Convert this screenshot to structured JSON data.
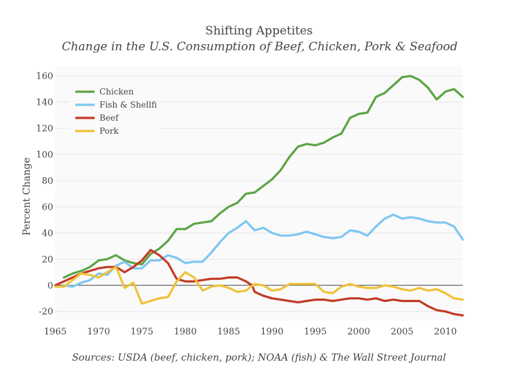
{
  "chart_data": {
    "type": "line",
    "title": "Shifting Appetites",
    "subtitle": "Change in the U.S. Consumption of Beef, Chicken, Pork & Seafood",
    "xlabel": "",
    "ylabel": "Percent Change",
    "source": "Sources: USDA (beef, chicken, pork); NOAA (fish) & The Wall Street Journal",
    "xlim": [
      1965,
      2012
    ],
    "ylim": [
      -27,
      168
    ],
    "x_ticks": [
      1965,
      1970,
      1975,
      1980,
      1985,
      1990,
      1995,
      2000,
      2005,
      2010
    ],
    "y_ticks": [
      -20,
      0,
      20,
      40,
      60,
      80,
      100,
      120,
      140,
      160
    ],
    "grid": true,
    "legend_position": "top-left",
    "series": [
      {
        "name": "Chicken",
        "color": "#5ca444",
        "x": [
          1966,
          1967,
          1968,
          1969,
          1970,
          1971,
          1972,
          1973,
          1974,
          1975,
          1976,
          1977,
          1978,
          1979,
          1980,
          1981,
          1982,
          1983,
          1984,
          1985,
          1986,
          1987,
          1988,
          1989,
          1990,
          1991,
          1992,
          1993,
          1994,
          1995,
          1996,
          1997,
          1998,
          1999,
          2000,
          2001,
          2002,
          2003,
          2004,
          2005,
          2006,
          2007,
          2008,
          2009,
          2010,
          2011,
          2012
        ],
        "y": [
          6,
          9,
          11,
          14,
          19,
          20,
          23,
          19,
          17,
          16,
          24,
          28,
          34,
          43,
          43,
          47,
          48,
          49,
          55,
          60,
          63,
          70,
          71,
          76,
          81,
          88,
          98,
          106,
          108,
          107,
          109,
          113,
          116,
          128,
          131,
          132,
          144,
          147,
          153,
          159,
          160,
          157,
          151,
          142,
          148,
          150,
          144
        ]
      },
      {
        "name": "Fish & Shellfi",
        "color": "#7dc6f2",
        "x": [
          1966,
          1967,
          1968,
          1969,
          1970,
          1971,
          1972,
          1973,
          1974,
          1975,
          1976,
          1977,
          1978,
          1979,
          1980,
          1981,
          1982,
          1983,
          1984,
          1985,
          1986,
          1987,
          1988,
          1989,
          1990,
          1991,
          1992,
          1993,
          1994,
          1995,
          1996,
          1997,
          1998,
          1999,
          2000,
          2001,
          2002,
          2003,
          2004,
          2005,
          2006,
          2007,
          2008,
          2009,
          2010,
          2011,
          2012
        ],
        "y": [
          0,
          -1,
          2,
          4,
          9,
          8,
          15,
          18,
          13,
          13,
          19,
          19,
          23,
          21,
          17,
          18,
          18,
          25,
          33,
          40,
          44,
          49,
          42,
          44,
          40,
          38,
          38,
          39,
          41,
          39,
          37,
          36,
          37,
          42,
          41,
          38,
          45,
          51,
          54,
          51,
          52,
          51,
          49,
          48,
          48,
          45,
          35
        ]
      },
      {
        "name": "Beef",
        "color": "#c33a25",
        "x": [
          1965,
          1966,
          1967,
          1968,
          1969,
          1970,
          1971,
          1972,
          1973,
          1974,
          1975,
          1976,
          1977,
          1978,
          1979,
          1980,
          1981,
          1982,
          1983,
          1984,
          1985,
          1986,
          1987,
          1987.7,
          1988,
          1989,
          1990,
          1991,
          1992,
          1993,
          1994,
          1995,
          1996,
          1997,
          1998,
          1999,
          2000,
          2001,
          2002,
          2003,
          2004,
          2005,
          2006,
          2007,
          2008,
          2009,
          2010,
          2011,
          2012
        ],
        "y": [
          0,
          3,
          6,
          9,
          11,
          13,
          14,
          14,
          10,
          14,
          19,
          27,
          23,
          17,
          5,
          3,
          3,
          4,
          5,
          5,
          6,
          6,
          3,
          0,
          -5,
          -8,
          -10,
          -11,
          -12,
          -13,
          -12,
          -11,
          -11,
          -12,
          -11,
          -10,
          -10,
          -11,
          -10,
          -12,
          -11,
          -12,
          -12,
          -12,
          -16,
          -19,
          -20,
          -22,
          -23
        ]
      },
      {
        "name": "Pork",
        "color": "#f0c238",
        "x": [
          1965,
          1966,
          1967,
          1968,
          1969,
          1970,
          1971,
          1972,
          1973,
          1974,
          1975,
          1976,
          1977,
          1978,
          1979,
          1980,
          1981,
          1982,
          1983,
          1984,
          1985,
          1986,
          1987,
          1988,
          1989,
          1990,
          1991,
          1992,
          1993,
          1994,
          1995,
          1996,
          1997,
          1998,
          1999,
          2000,
          2001,
          2002,
          2003,
          2004,
          2005,
          2006,
          2007,
          2008,
          2009,
          2010,
          2011,
          2012
        ],
        "y": [
          -1,
          -1,
          4,
          9,
          8,
          6,
          10,
          14,
          -2,
          2,
          -14,
          -12,
          -10,
          -9,
          3,
          10,
          6,
          -4,
          -1,
          0,
          -2,
          -5,
          -4,
          1,
          0,
          -4,
          -3,
          1,
          1,
          1,
          1,
          -5,
          -6,
          -1,
          1,
          -1,
          -2,
          -2,
          0,
          -1,
          -3,
          -4,
          -2,
          -4,
          -3,
          -6,
          -10,
          -11
        ]
      }
    ]
  }
}
